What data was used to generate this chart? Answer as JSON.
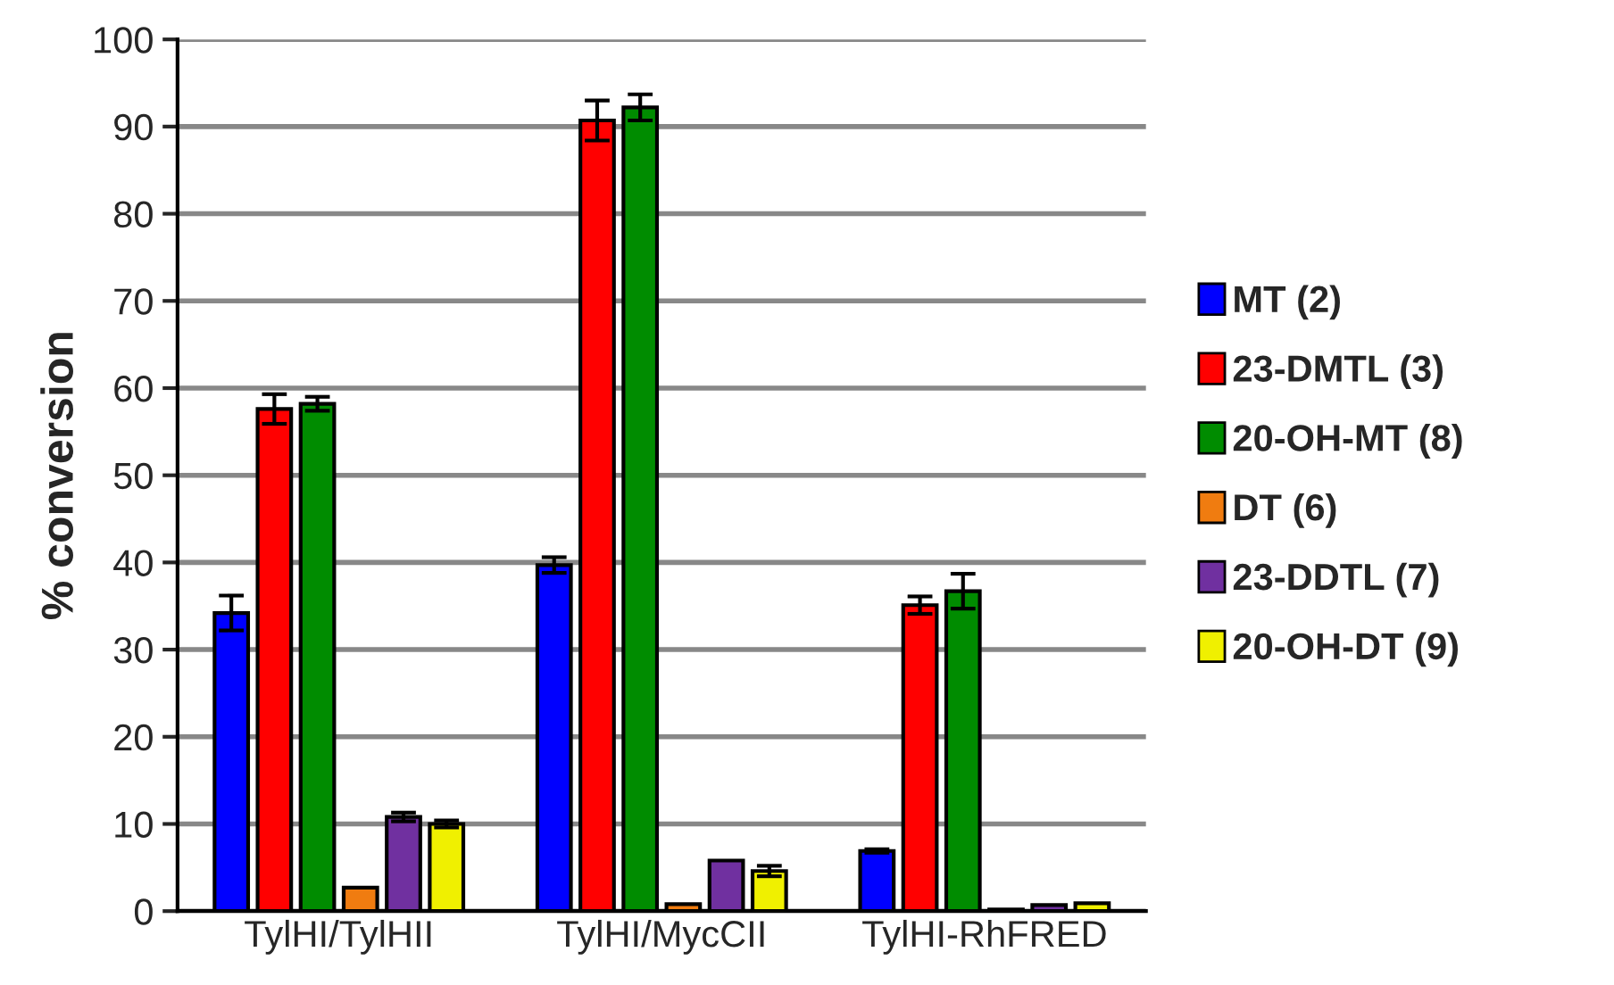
{
  "chart_data": {
    "type": "bar",
    "ylabel": "% conversion",
    "categories": [
      "TylHI/TylHII",
      "TylHI/MycCII",
      "TylHI-RhFRED"
    ],
    "series": [
      {
        "name": "MT (2)",
        "color": "#0000ff",
        "values": [
          34.2,
          39.7,
          6.9
        ],
        "errors": [
          2.0,
          0.9,
          0.2
        ]
      },
      {
        "name": "23-DMTL (3)",
        "color": "#ff0000",
        "values": [
          57.6,
          90.7,
          35.1
        ],
        "errors": [
          1.7,
          2.3,
          1.0
        ]
      },
      {
        "name": "20-OH-MT (8)",
        "color": "#008c00",
        "values": [
          58.2,
          92.2,
          36.7
        ],
        "errors": [
          0.8,
          1.5,
          2.0
        ]
      },
      {
        "name": "DT (6)",
        "color": "#f07c10",
        "values": [
          2.7,
          0.8,
          0.2
        ]
      },
      {
        "name": "23-DDTL (7)",
        "color": "#7030a0",
        "values": [
          10.8,
          5.8,
          0.7
        ],
        "errors": [
          0.5,
          null,
          null
        ]
      },
      {
        "name": "20-OH-DT (9)",
        "color": "#f0f000",
        "values": [
          10.0,
          4.6,
          0.9
        ],
        "errors": [
          0.4,
          0.6,
          null
        ]
      }
    ],
    "ylim": [
      0,
      100
    ],
    "yticks": [
      0,
      10,
      20,
      30,
      40,
      50,
      60,
      70,
      80,
      90,
      100
    ],
    "grid": "y",
    "legend": "right"
  }
}
